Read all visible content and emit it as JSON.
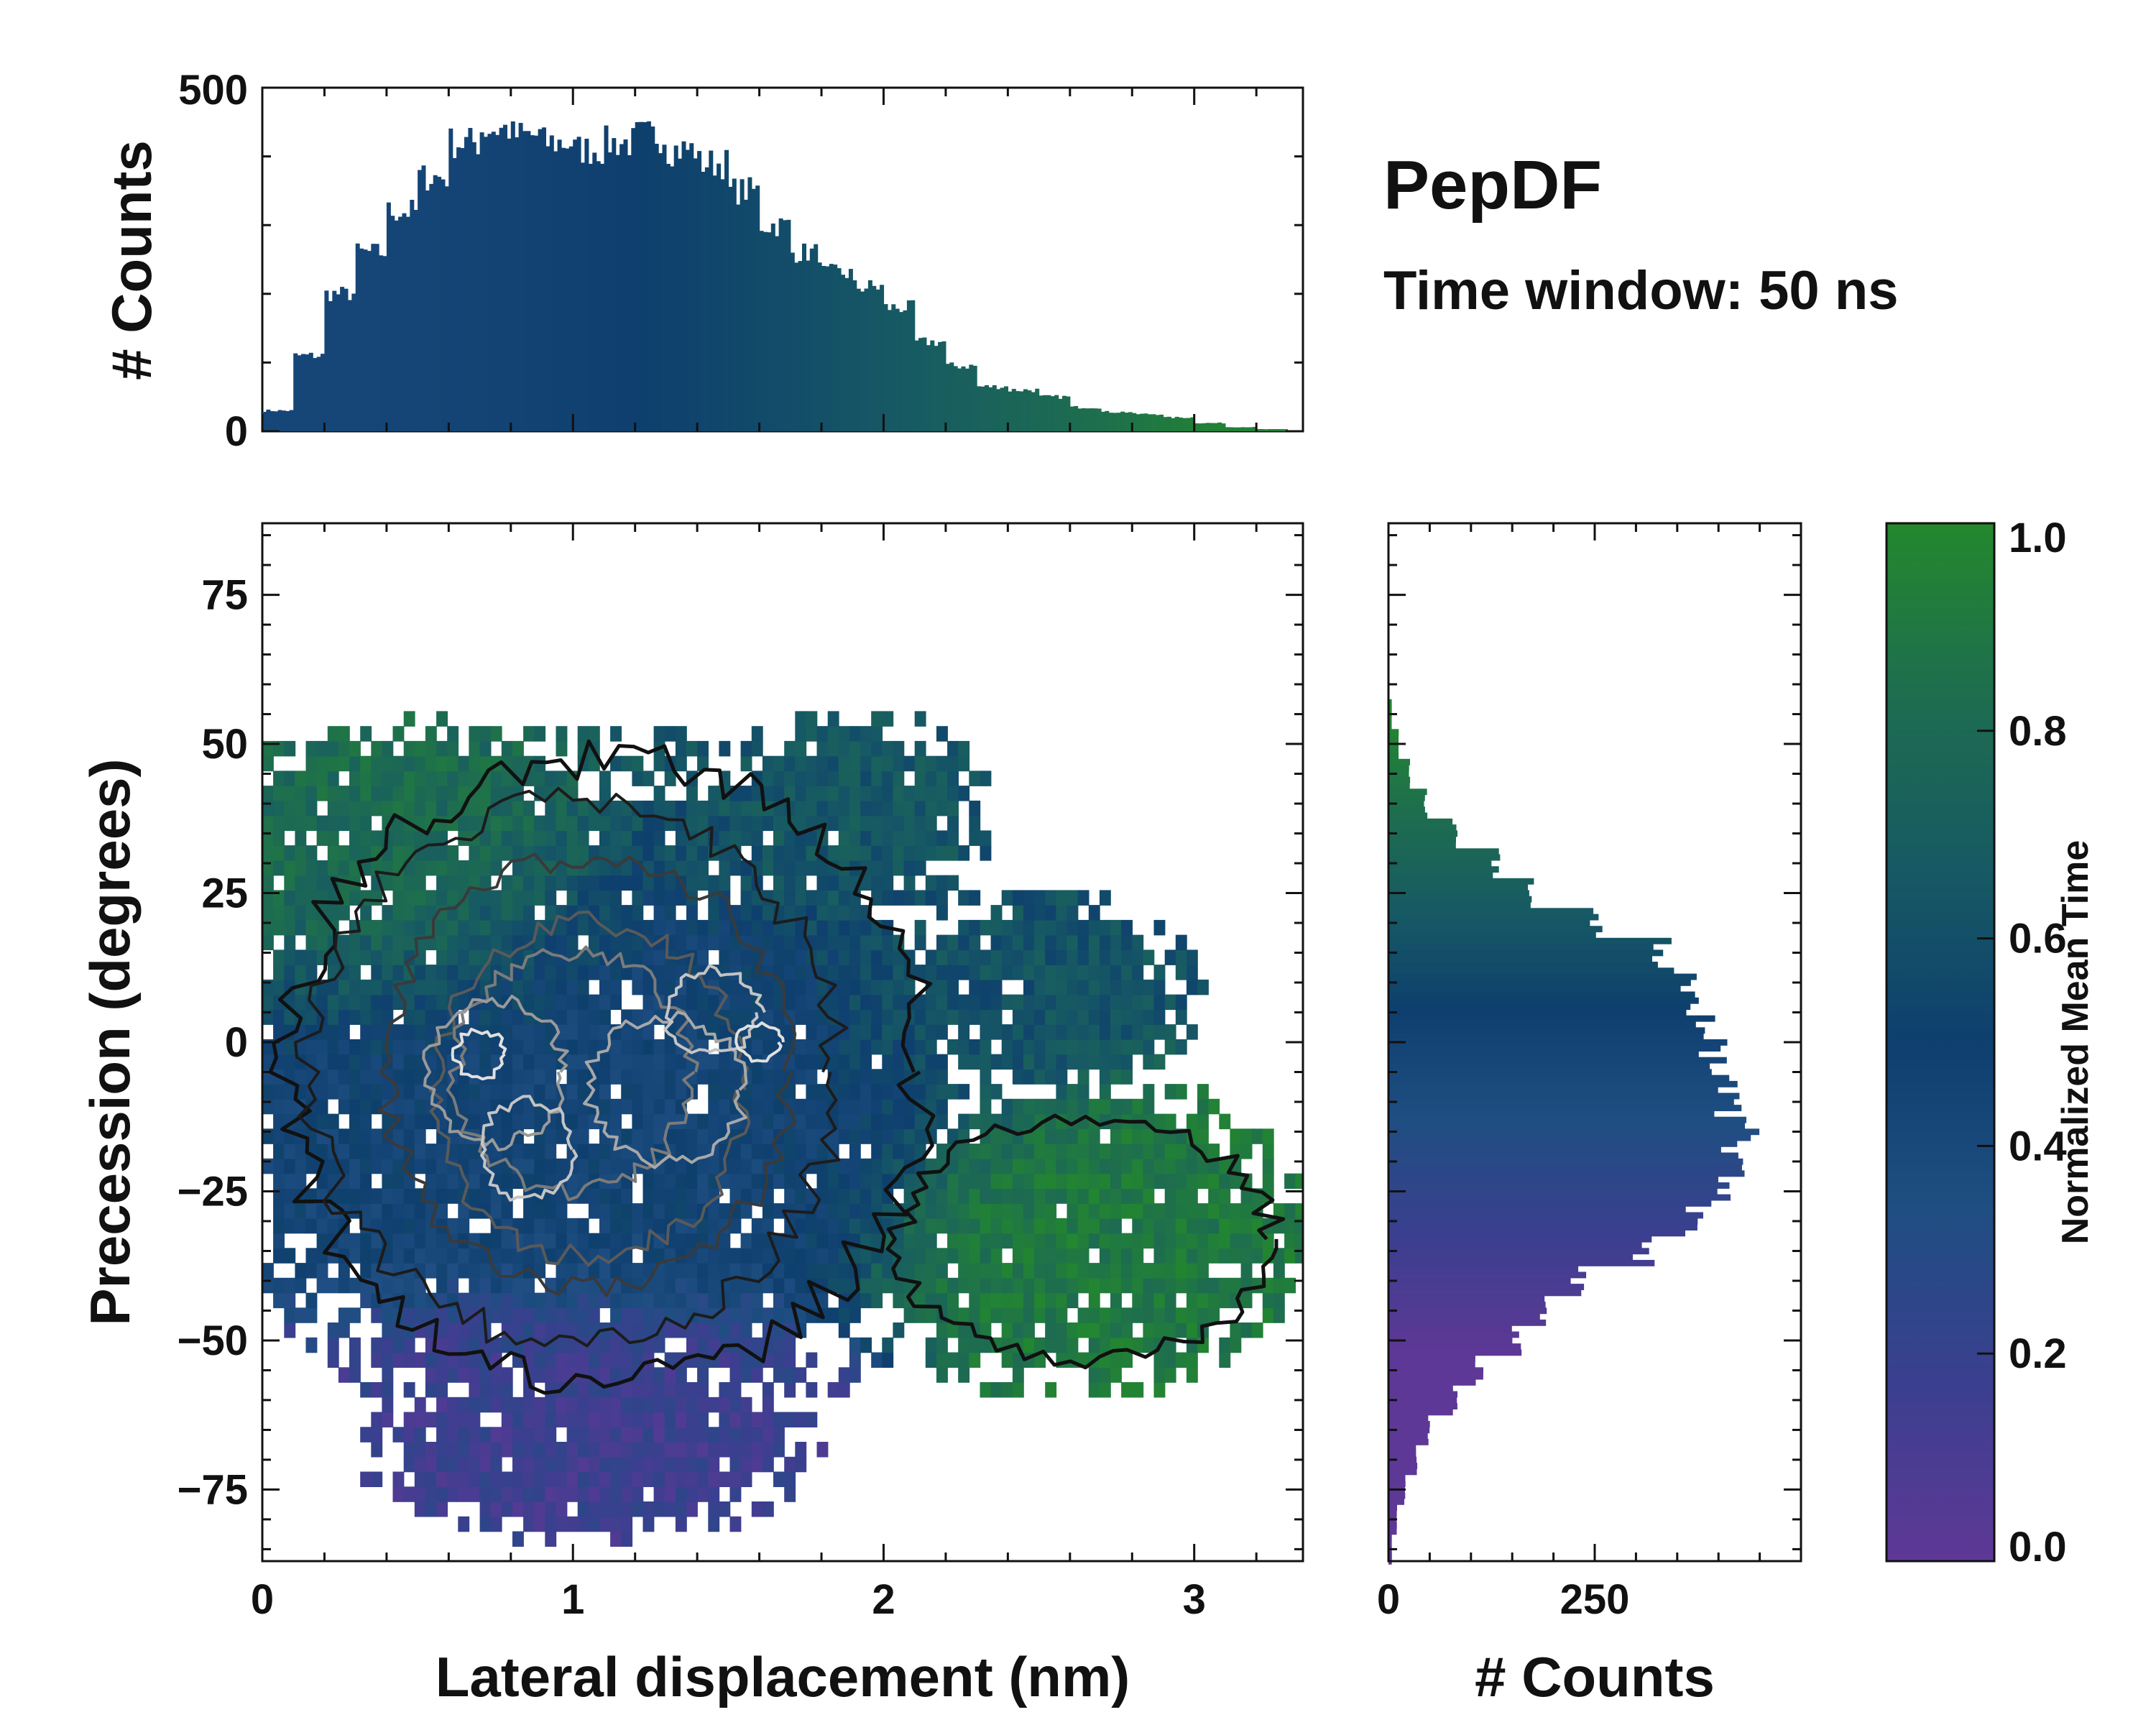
{
  "chart_data": [
    {
      "type": "bar",
      "role": "marginal-histogram-x",
      "ylabel": "# Counts",
      "xlim": [
        0,
        3.35
      ],
      "ylim": [
        0,
        500
      ],
      "yticks": [
        "0",
        "500"
      ],
      "bins_x": [
        0.05,
        0.15,
        0.25,
        0.35,
        0.45,
        0.55,
        0.65,
        0.75,
        0.85,
        0.95,
        1.05,
        1.15,
        1.25,
        1.35,
        1.45,
        1.55,
        1.65,
        1.75,
        1.85,
        1.95,
        2.05,
        2.15,
        2.25,
        2.35,
        2.45,
        2.55,
        2.65,
        2.75,
        2.85,
        2.95,
        3.05,
        3.15,
        3.25
      ],
      "values": [
        30,
        110,
        200,
        260,
        320,
        370,
        420,
        440,
        430,
        420,
        410,
        420,
        430,
        410,
        390,
        350,
        300,
        260,
        230,
        210,
        180,
        130,
        95,
        65,
        60,
        50,
        35,
        28,
        25,
        20,
        12,
        6,
        3
      ]
    },
    {
      "type": "bar",
      "role": "marginal-histogram-y",
      "xlabel": "# Counts",
      "xlim": [
        0,
        500
      ],
      "xticks": [
        "0",
        "250"
      ],
      "bins_y": [
        55,
        50,
        45,
        40,
        35,
        30,
        25,
        20,
        15,
        10,
        5,
        0,
        -5,
        -10,
        -15,
        -20,
        -25,
        -30,
        -35,
        -40,
        -45,
        -50,
        -55,
        -60,
        -65,
        -70,
        -75,
        -80,
        -85
      ],
      "values": [
        4,
        12,
        25,
        45,
        80,
        130,
        170,
        250,
        330,
        360,
        380,
        395,
        405,
        415,
        430,
        420,
        410,
        370,
        310,
        230,
        185,
        155,
        110,
        80,
        50,
        35,
        20,
        10,
        4
      ]
    },
    {
      "type": "heatmap",
      "role": "joint-distribution",
      "xlabel": "Lateral displacement (nm)",
      "ylabel": "Precession (degrees)",
      "xlim": [
        0,
        3.35
      ],
      "ylim": [
        -87,
        87
      ],
      "xticks": [
        "0",
        "1",
        "2",
        "3"
      ],
      "yticks": [
        "−75",
        "−50",
        "−25",
        "0",
        "25",
        "50",
        "75"
      ],
      "regions": [
        {
          "name": "upper-left-late",
          "center": [
            0.5,
            30
          ],
          "spread": [
            0.45,
            18
          ],
          "mean_time": 0.82
        },
        {
          "name": "core",
          "center": [
            1.1,
            -5
          ],
          "spread": [
            0.75,
            28
          ],
          "mean_time": 0.45
        },
        {
          "name": "lower-early",
          "center": [
            1.0,
            -65
          ],
          "spread": [
            0.6,
            15
          ],
          "mean_time": 0.15
        },
        {
          "name": "right-tail-late",
          "center": [
            2.7,
            -35
          ],
          "spread": [
            0.45,
            18
          ],
          "mean_time": 0.9
        },
        {
          "name": "upper-mid",
          "center": [
            1.8,
            35
          ],
          "spread": [
            0.35,
            12
          ],
          "mean_time": 0.65
        },
        {
          "name": "mid-right",
          "center": [
            2.3,
            10
          ],
          "spread": [
            0.4,
            14
          ],
          "mean_time": 0.62
        }
      ]
    },
    {
      "type": "colorbar",
      "label": "Normalized Mean Time",
      "range": [
        0.0,
        1.0
      ],
      "ticks": [
        "0.0",
        "0.2",
        "0.4",
        "0.6",
        "0.8",
        "1.0"
      ],
      "colors": [
        "#5e3896",
        "#3b3f8f",
        "#1f4e82",
        "#0e3f6e",
        "#175a63",
        "#1e6e4e",
        "#23882d"
      ]
    }
  ],
  "annotations": {
    "title": "PepDF",
    "subtitle": "Time window: 50 ns"
  }
}
